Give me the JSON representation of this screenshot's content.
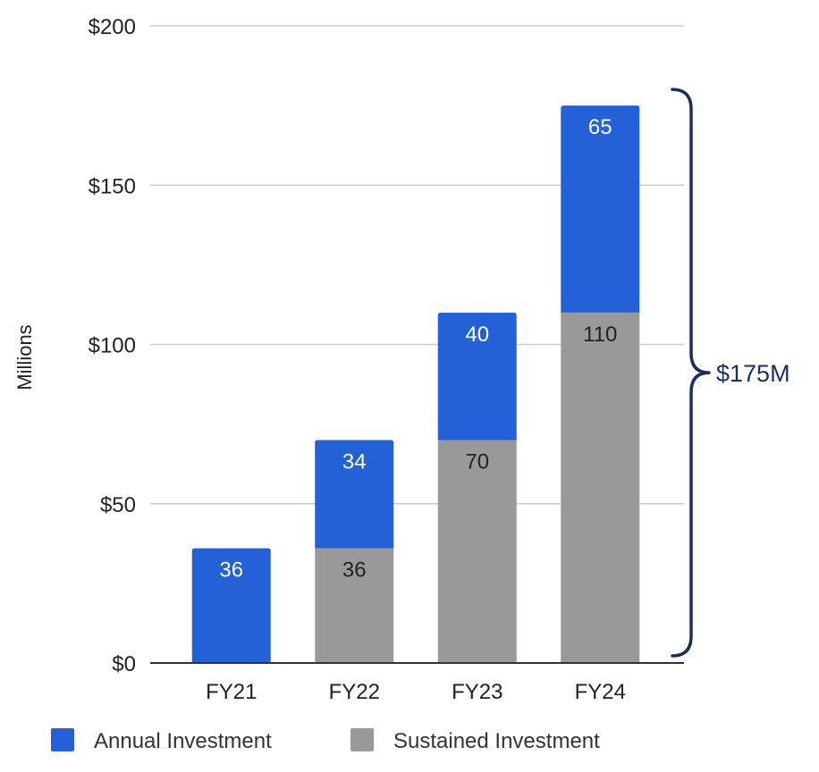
{
  "chart_data": {
    "type": "bar",
    "stacked": true,
    "categories": [
      "FY21",
      "FY22",
      "FY23",
      "FY24"
    ],
    "series": [
      {
        "name": "Sustained Investment",
        "values": [
          0,
          36,
          70,
          110
        ],
        "color": "#999999"
      },
      {
        "name": "Annual Investment",
        "values": [
          36,
          34,
          40,
          65
        ],
        "color": "#2460D6"
      }
    ],
    "ylabel": "Millions",
    "ylim": [
      0,
      200
    ],
    "yticks": [
      0,
      50,
      100,
      150,
      200
    ],
    "ytick_labels": [
      "$0",
      "$50",
      "$100",
      "$150",
      "$200"
    ],
    "grid": true,
    "legend_position": "bottom",
    "legend": [
      "Annual Investment",
      "Sustained Investment"
    ],
    "annotation": {
      "label": "$175M",
      "value": 175,
      "color": "#1B2E5E"
    }
  }
}
